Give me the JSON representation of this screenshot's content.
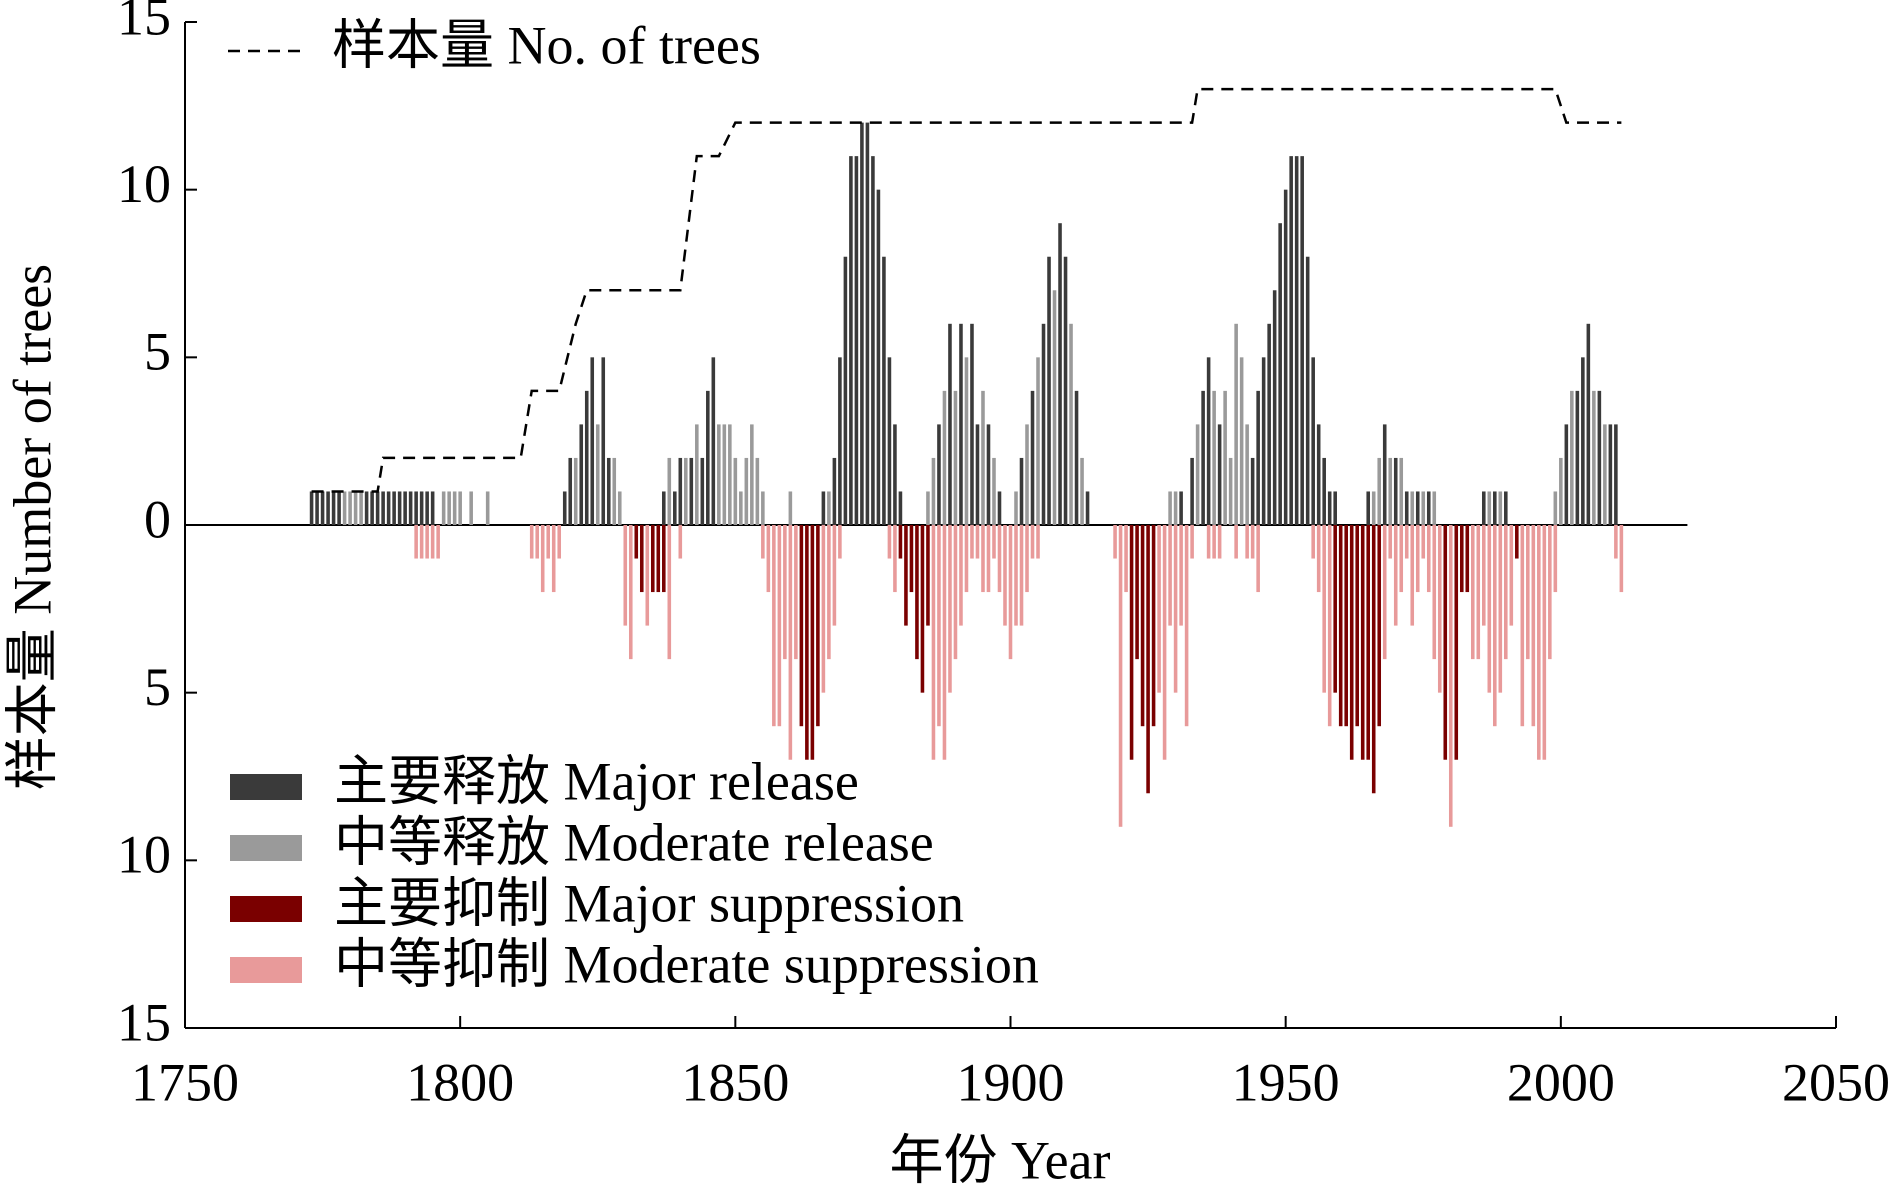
{
  "chart_data": {
    "type": "bar",
    "x_label": "年份 Year",
    "y_label": "样本量 Number of trees",
    "xlim": [
      1750,
      2050
    ],
    "xticks": [
      1750,
      1800,
      1850,
      1900,
      1950,
      2000,
      2050
    ],
    "ylim": [
      -15,
      15
    ],
    "yticks": [
      {
        "value": -15,
        "label": "15"
      },
      {
        "value": -10,
        "label": "10"
      },
      {
        "value": -5,
        "label": "5"
      },
      0,
      5,
      10,
      15
    ],
    "x": [
      1770,
      1771,
      1772,
      1773,
      1774,
      1775,
      1776,
      1777,
      1778,
      1779,
      1780,
      1781,
      1782,
      1783,
      1784,
      1785,
      1786,
      1787,
      1788,
      1789,
      1790,
      1791,
      1792,
      1793,
      1794,
      1795,
      1796,
      1797,
      1798,
      1799,
      1800,
      1801,
      1802,
      1803,
      1804,
      1805,
      1806,
      1807,
      1808,
      1809,
      1810,
      1811,
      1812,
      1813,
      1814,
      1815,
      1816,
      1817,
      1818,
      1819,
      1820,
      1821,
      1822,
      1823,
      1824,
      1825,
      1826,
      1827,
      1828,
      1829,
      1830,
      1831,
      1832,
      1833,
      1834,
      1835,
      1836,
      1837,
      1838,
      1839,
      1840,
      1841,
      1842,
      1843,
      1844,
      1845,
      1846,
      1847,
      1848,
      1849,
      1850,
      1851,
      1852,
      1853,
      1854,
      1855,
      1856,
      1857,
      1858,
      1859,
      1860,
      1861,
      1862,
      1863,
      1864,
      1865,
      1866,
      1867,
      1868,
      1869,
      1870,
      1871,
      1872,
      1873,
      1874,
      1875,
      1876,
      1877,
      1878,
      1879,
      1880,
      1881,
      1882,
      1883,
      1884,
      1885,
      1886,
      1887,
      1888,
      1889,
      1890,
      1891,
      1892,
      1893,
      1894,
      1895,
      1896,
      1897,
      1898,
      1899,
      1900,
      1901,
      1902,
      1903,
      1904,
      1905,
      1906,
      1907,
      1908,
      1909,
      1910,
      1911,
      1912,
      1913,
      1914,
      1915,
      1916,
      1917,
      1918,
      1919,
      1920,
      1921,
      1922,
      1923,
      1924,
      1925,
      1926,
      1927,
      1928,
      1929,
      1930,
      1931,
      1932,
      1933,
      1934,
      1935,
      1936,
      1937,
      1938,
      1939,
      1940,
      1941,
      1942,
      1943,
      1944,
      1945,
      1946,
      1947,
      1948,
      1949,
      1950,
      1951,
      1952,
      1953,
      1954,
      1955,
      1956,
      1957,
      1958,
      1959,
      1960,
      1961,
      1962,
      1963,
      1964,
      1965,
      1966,
      1967,
      1968,
      1969,
      1970,
      1971,
      1972,
      1973,
      1974,
      1975,
      1976,
      1977,
      1978,
      1979,
      1980,
      1981,
      1982,
      1983,
      1984,
      1985,
      1986,
      1987,
      1988,
      1989,
      1990,
      1991,
      1992,
      1993,
      1994,
      1995,
      1996,
      1997,
      1998,
      1999,
      2000,
      2001,
      2002,
      2003,
      2004,
      2005,
      2006,
      2007,
      2008,
      2009,
      2010,
      2011
    ],
    "series": [
      {
        "name": "主要释放 Major release",
        "color": "#3a3a3a",
        "values": [
          0,
          0,
          0,
          1,
          1,
          1,
          1,
          1,
          1,
          0,
          0,
          0,
          0,
          1,
          1,
          1,
          1,
          1,
          1,
          1,
          1,
          1,
          1,
          1,
          1,
          1,
          0,
          0,
          0,
          0,
          0,
          0,
          0,
          0,
          0,
          0,
          0,
          0,
          0,
          0,
          0,
          0,
          0,
          0,
          0,
          0,
          0,
          0,
          0,
          1,
          2,
          0,
          3,
          4,
          5,
          0,
          5,
          2,
          0,
          0,
          0,
          0,
          0,
          0,
          0,
          0,
          0,
          1,
          0,
          1,
          2,
          0,
          2,
          0,
          2,
          4,
          5,
          0,
          0,
          0,
          0,
          0,
          0,
          0,
          0,
          0,
          0,
          0,
          0,
          0,
          0,
          0,
          0,
          0,
          0,
          0,
          1,
          0,
          2,
          5,
          8,
          11,
          11,
          12,
          12,
          11,
          10,
          8,
          5,
          3,
          1,
          0,
          0,
          0,
          0,
          0,
          0,
          3,
          0,
          6,
          0,
          6,
          0,
          6,
          3,
          0,
          3,
          0,
          1,
          0,
          0,
          0,
          2,
          0,
          4,
          0,
          6,
          8,
          0,
          9,
          8,
          0,
          4,
          0,
          1,
          0,
          0,
          0,
          0,
          0,
          0,
          0,
          0,
          0,
          0,
          0,
          0,
          0,
          0,
          0,
          0,
          1,
          0,
          2,
          0,
          4,
          5,
          0,
          3,
          0,
          0,
          0,
          0,
          0,
          2,
          4,
          5,
          6,
          7,
          9,
          10,
          11,
          11,
          11,
          8,
          5,
          3,
          2,
          1,
          1,
          0,
          0,
          0,
          0,
          0,
          1,
          0,
          0,
          3,
          0,
          2,
          0,
          1,
          0,
          1,
          0,
          1,
          0,
          0,
          0,
          0,
          0,
          0,
          0,
          0,
          0,
          1,
          0,
          1,
          0,
          1,
          0,
          0,
          0,
          0,
          0,
          0,
          0,
          0,
          0,
          0,
          3,
          0,
          4,
          5,
          6,
          0,
          4,
          0,
          3,
          3,
          0
        ]
      },
      {
        "name": "中等释放 Moderate release",
        "color": "#9a9a9a",
        "values": [
          0,
          0,
          0,
          0,
          0,
          0,
          0,
          0,
          0,
          1,
          1,
          1,
          1,
          0,
          0,
          0,
          0,
          0,
          0,
          0,
          0,
          0,
          0,
          0,
          0,
          0,
          0,
          1,
          1,
          1,
          1,
          0,
          1,
          0,
          0,
          1,
          0,
          0,
          0,
          0,
          0,
          0,
          0,
          0,
          0,
          0,
          0,
          0,
          0,
          0,
          0,
          2,
          0,
          0,
          0,
          3,
          0,
          0,
          2,
          1,
          0,
          0,
          0,
          0,
          0,
          0,
          0,
          0,
          2,
          0,
          0,
          2,
          0,
          3,
          0,
          0,
          0,
          3,
          3,
          3,
          2,
          1,
          2,
          3,
          2,
          1,
          0,
          0,
          0,
          0,
          1,
          0,
          0,
          0,
          0,
          0,
          0,
          1,
          0,
          0,
          0,
          0,
          0,
          0,
          0,
          0,
          0,
          0,
          0,
          0,
          0,
          0,
          0,
          0,
          0,
          1,
          2,
          0,
          4,
          0,
          4,
          0,
          5,
          0,
          0,
          4,
          0,
          2,
          0,
          0,
          0,
          1,
          0,
          3,
          0,
          5,
          0,
          0,
          7,
          0,
          0,
          6,
          0,
          2,
          0,
          0,
          0,
          0,
          0,
          0,
          0,
          0,
          0,
          0,
          0,
          0,
          0,
          0,
          0,
          1,
          1,
          0,
          0,
          0,
          3,
          0,
          0,
          4,
          0,
          4,
          2,
          6,
          5,
          3,
          0,
          0,
          0,
          0,
          0,
          0,
          0,
          0,
          0,
          0,
          0,
          0,
          0,
          0,
          0,
          0,
          0,
          0,
          0,
          0,
          0,
          0,
          1,
          2,
          0,
          2,
          0,
          2,
          0,
          1,
          0,
          1,
          0,
          1,
          0,
          0,
          0,
          0,
          0,
          0,
          0,
          0,
          0,
          1,
          0,
          1,
          0,
          0,
          0,
          0,
          0,
          0,
          0,
          0,
          0,
          1,
          2,
          0,
          4,
          0,
          0,
          0,
          4,
          0,
          3,
          0,
          0,
          0
        ]
      },
      {
        "name": "主要抑制 Major suppression",
        "color": "#7a0000",
        "values": [
          0,
          0,
          0,
          0,
          0,
          0,
          0,
          0,
          0,
          0,
          0,
          0,
          0,
          0,
          0,
          0,
          0,
          0,
          0,
          0,
          0,
          0,
          0,
          0,
          0,
          0,
          0,
          0,
          0,
          0,
          0,
          0,
          0,
          0,
          0,
          0,
          0,
          0,
          0,
          0,
          0,
          0,
          0,
          0,
          0,
          0,
          0,
          0,
          0,
          0,
          0,
          0,
          0,
          0,
          0,
          0,
          0,
          0,
          0,
          0,
          0,
          0,
          -1,
          -2,
          0,
          -2,
          -2,
          -2,
          0,
          0,
          0,
          0,
          0,
          0,
          0,
          0,
          0,
          0,
          0,
          0,
          0,
          0,
          0,
          0,
          0,
          0,
          0,
          0,
          0,
          0,
          0,
          0,
          -6,
          -7,
          -7,
          -6,
          0,
          0,
          0,
          0,
          0,
          0,
          0,
          0,
          0,
          0,
          0,
          0,
          0,
          0,
          -1,
          -3,
          -2,
          -4,
          -5,
          -3,
          0,
          0,
          0,
          0,
          0,
          0,
          0,
          0,
          0,
          0,
          0,
          0,
          0,
          0,
          0,
          0,
          0,
          0,
          0,
          0,
          0,
          0,
          0,
          0,
          0,
          0,
          0,
          0,
          0,
          0,
          0,
          0,
          0,
          0,
          0,
          0,
          -7,
          -4,
          -6,
          -8,
          -6,
          0,
          0,
          0,
          0,
          0,
          0,
          0,
          0,
          0,
          0,
          0,
          0,
          0,
          0,
          0,
          0,
          0,
          0,
          0,
          0,
          0,
          0,
          0,
          0,
          0,
          0,
          0,
          0,
          0,
          0,
          0,
          0,
          -5,
          -6,
          -6,
          -7,
          -6,
          -7,
          -7,
          -8,
          -6,
          0,
          0,
          0,
          0,
          0,
          0,
          0,
          0,
          0,
          0,
          0,
          -7,
          0,
          -7,
          -2,
          -2,
          0,
          0,
          0,
          0,
          0,
          0,
          0,
          0,
          -1,
          0,
          0,
          0,
          0,
          0,
          0,
          0,
          0,
          0,
          0,
          0,
          0,
          0,
          0,
          0,
          0,
          0,
          0,
          0
        ]
      },
      {
        "name": "中等抑制 Moderate suppression",
        "color": "#e89a9a",
        "values": [
          0,
          0,
          0,
          0,
          0,
          0,
          0,
          0,
          0,
          0,
          0,
          0,
          0,
          0,
          0,
          0,
          0,
          0,
          0,
          0,
          0,
          0,
          -1,
          -1,
          -1,
          -1,
          -1,
          0,
          0,
          0,
          0,
          0,
          0,
          0,
          0,
          0,
          0,
          0,
          0,
          0,
          0,
          0,
          0,
          -1,
          -1,
          -2,
          -1,
          -2,
          -1,
          0,
          0,
          0,
          0,
          0,
          0,
          0,
          0,
          0,
          0,
          0,
          -3,
          -4,
          0,
          0,
          -3,
          0,
          0,
          0,
          -4,
          0,
          -1,
          0,
          0,
          0,
          0,
          0,
          0,
          0,
          0,
          0,
          0,
          0,
          0,
          0,
          0,
          -1,
          -2,
          -6,
          -6,
          -4,
          -7,
          -4,
          0,
          0,
          0,
          0,
          -5,
          -4,
          -3,
          -1,
          0,
          0,
          0,
          0,
          0,
          0,
          0,
          0,
          -1,
          -2,
          0,
          0,
          0,
          0,
          0,
          0,
          -7,
          -6,
          -7,
          -5,
          -4,
          -3,
          -2,
          -1,
          -1,
          -2,
          -2,
          -1,
          -2,
          -3,
          -4,
          -3,
          -3,
          -2,
          -1,
          -1,
          0,
          0,
          0,
          0,
          0,
          0,
          0,
          0,
          0,
          0,
          0,
          0,
          0,
          -1,
          -9,
          -2,
          0,
          0,
          0,
          0,
          0,
          -5,
          -7,
          -3,
          -5,
          -3,
          -6,
          -1,
          0,
          0,
          -1,
          -1,
          -1,
          0,
          0,
          -1,
          0,
          -1,
          -1,
          -2,
          0,
          0,
          0,
          0,
          0,
          0,
          0,
          0,
          0,
          -1,
          -2,
          -5,
          -6,
          0,
          0,
          0,
          0,
          0,
          0,
          0,
          0,
          0,
          -4,
          -1,
          -3,
          -2,
          -1,
          -3,
          -2,
          -1,
          -2,
          -4,
          -5,
          0,
          -9,
          0,
          0,
          0,
          -4,
          -4,
          -3,
          -5,
          -6,
          -5,
          -4,
          -3,
          0,
          -6,
          -4,
          -6,
          -7,
          -7,
          -4,
          -2,
          0,
          0,
          0,
          0,
          0,
          0,
          0,
          0,
          0,
          0,
          -1,
          -2
        ]
      },
      {
        "name": "样本量 No. of trees",
        "type": "line",
        "color": "#000000",
        "dashed": true,
        "x": [
          1773,
          1785,
          1786,
          1811,
          1813,
          1818,
          1821,
          1823,
          1840,
          1843,
          1847,
          1850,
          1933,
          1934,
          1999,
          2001,
          2011
        ],
        "values": [
          1,
          1,
          2,
          2,
          4,
          4,
          6,
          7,
          7,
          11,
          11,
          12,
          12,
          13,
          13,
          12,
          12
        ]
      }
    ]
  }
}
